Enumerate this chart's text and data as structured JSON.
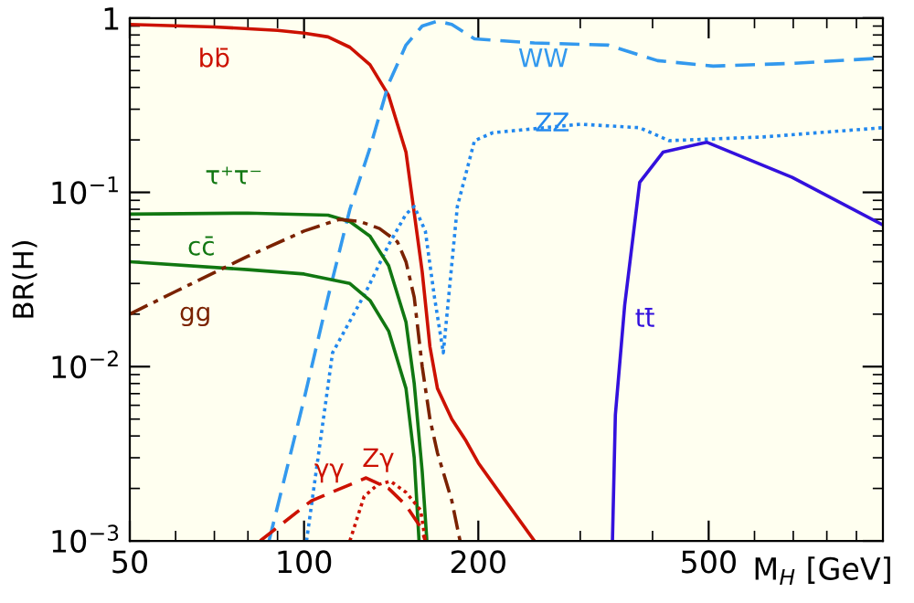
{
  "chart_data": {
    "type": "line",
    "xlabel": "M$_{H}$ [GeV]",
    "ylabel": "BR(H)",
    "log": "xy",
    "grid": false,
    "legend": false,
    "xlim": [
      50,
      1000
    ],
    "ylim": [
      0.001,
      1
    ],
    "xticks": [
      50,
      100,
      200,
      500
    ],
    "yticks": [
      {
        "value": 0.001,
        "label": "10$^{−3}$"
      },
      {
        "value": 0.01,
        "label": "10$^{−2}$"
      },
      {
        "value": 0.1,
        "label": "10$^{−1}$"
      },
      1
    ],
    "series": [
      {
        "name": "bb̄",
        "color": "#cc1100",
        "line_style": "solid",
        "x": [
          50,
          70,
          90,
          100,
          110,
          120,
          130,
          140,
          150,
          160,
          165,
          170,
          180,
          190,
          200,
          220,
          250
        ],
        "values": [
          0.92,
          0.89,
          0.85,
          0.82,
          0.78,
          0.68,
          0.54,
          0.36,
          0.17,
          0.035,
          0.013,
          0.0075,
          0.005,
          0.0038,
          0.0028,
          0.0018,
          0.001
        ]
      },
      {
        "name": "WW",
        "color": "#3399ee",
        "line_style": "dashed",
        "x": [
          87,
          100,
          110,
          120,
          130,
          140,
          150,
          160,
          170,
          180,
          197,
          250,
          335,
          408,
          509,
          700,
          1000
        ],
        "values": [
          0.001,
          0.0065,
          0.025,
          0.08,
          0.18,
          0.42,
          0.7,
          0.9,
          0.96,
          0.92,
          0.76,
          0.72,
          0.7,
          0.57,
          0.53,
          0.55,
          0.59
        ]
      },
      {
        "name": "ZZ",
        "color": "#2288ee",
        "line_style": "dotted",
        "x": [
          101,
          112,
          128,
          140,
          150,
          155,
          162,
          168,
          174,
          184,
          197,
          212,
          300,
          380,
          427,
          622,
          1000
        ],
        "values": [
          0.001,
          0.012,
          0.027,
          0.05,
          0.075,
          0.083,
          0.06,
          0.025,
          0.012,
          0.083,
          0.198,
          0.22,
          0.246,
          0.235,
          0.198,
          0.208,
          0.235
        ]
      },
      {
        "name": "tt̄",
        "color": "#3311dd",
        "line_style": "solid",
        "x": [
          341,
          345,
          358,
          380,
          417,
          496,
          697,
          1000
        ],
        "values": [
          0.001,
          0.0053,
          0.0225,
          0.114,
          0.17,
          0.194,
          0.122,
          0.065
        ]
      },
      {
        "name": "τ⁺τ⁻",
        "color": "#117711",
        "line_style": "solid",
        "x": [
          50,
          80,
          110,
          120,
          130,
          140,
          150,
          155,
          160,
          163
        ],
        "values": [
          0.075,
          0.076,
          0.074,
          0.068,
          0.056,
          0.038,
          0.018,
          0.008,
          0.0025,
          0.001
        ]
      },
      {
        "name": "cc̄",
        "color": "#117711",
        "line_style": "solid",
        "x": [
          50,
          80,
          100,
          120,
          130,
          140,
          150,
          155,
          158
        ],
        "values": [
          0.04,
          0.036,
          0.034,
          0.03,
          0.024,
          0.016,
          0.0075,
          0.003,
          0.001
        ]
      },
      {
        "name": "gg",
        "color": "#7a2200",
        "line_style": "dashdot",
        "x": [
          50,
          60,
          80,
          100,
          115,
          125,
          135,
          145,
          150,
          155,
          160,
          165,
          170,
          180,
          186
        ],
        "values": [
          0.02,
          0.027,
          0.043,
          0.06,
          0.07,
          0.068,
          0.062,
          0.052,
          0.04,
          0.025,
          0.01,
          0.005,
          0.0032,
          0.0017,
          0.001
        ]
      },
      {
        "name": "γγ",
        "color": "#cc1100",
        "line_style": "dashed",
        "x": [
          84,
          103,
          128,
          140,
          150,
          159,
          162
        ],
        "values": [
          0.001,
          0.0017,
          0.0023,
          0.002,
          0.0016,
          0.0012,
          0.001
        ]
      },
      {
        "name": "Zγ",
        "color": "#cc1100",
        "line_style": "dotted",
        "x": [
          120,
          127,
          134,
          141,
          150,
          159,
          162
        ],
        "values": [
          0.001,
          0.0018,
          0.0021,
          0.0022,
          0.0019,
          0.0015,
          0.001
        ]
      }
    ]
  }
}
